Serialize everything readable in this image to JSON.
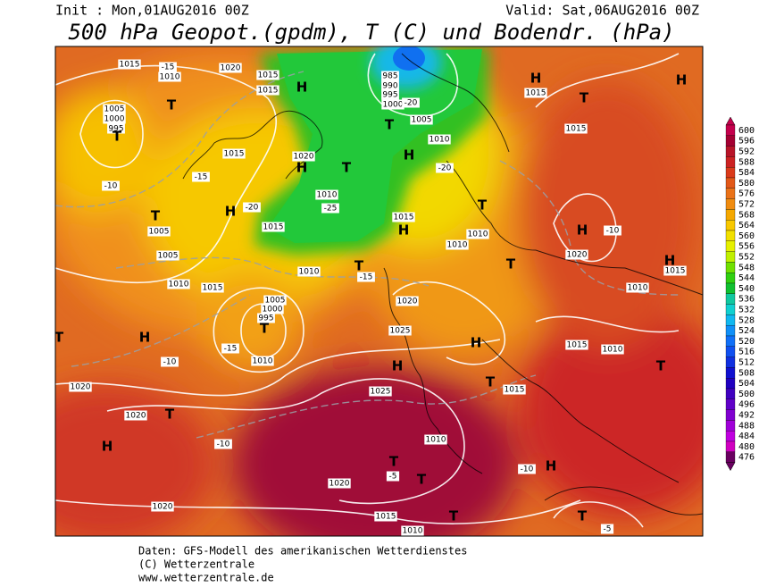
{
  "header": {
    "init": "Init : Mon,01AUG2016 00Z",
    "valid": "Valid: Sat,06AUG2016 00Z",
    "title": "500 hPa Geopot.(gpdm), T (C) und Bodendr. (hPa)"
  },
  "footer": {
    "line1": "Daten: GFS-Modell des amerikanischen Wetterdienstes",
    "line2": "(C) Wetterzentrale",
    "line3": "www.wetterzentrale.de"
  },
  "legend": {
    "levels": [
      600,
      596,
      592,
      588,
      584,
      580,
      576,
      572,
      568,
      564,
      560,
      556,
      552,
      548,
      544,
      540,
      536,
      532,
      528,
      524,
      520,
      516,
      512,
      508,
      504,
      500,
      496,
      492,
      488,
      484,
      480,
      476
    ],
    "colors": [
      "#c4004c",
      "#a40032",
      "#b81428",
      "#cc2222",
      "#da3a1a",
      "#e25818",
      "#ea7218",
      "#f08c10",
      "#f5a800",
      "#f8c800",
      "#f2e000",
      "#e6f000",
      "#c0f000",
      "#70e000",
      "#30d010",
      "#10c030",
      "#10c8a0",
      "#10d0d0",
      "#10b8f0",
      "#1090f8",
      "#1070f8",
      "#1050f0",
      "#1030e0",
      "#1010d0",
      "#2000c0",
      "#4000c0",
      "#6000c8",
      "#8000d0",
      "#a000d8",
      "#c000e0",
      "#d000c0",
      "#6a0060"
    ]
  },
  "map": {
    "pressure_labels": [
      "1015",
      "1010",
      "1005",
      "1000",
      "995",
      "1020",
      "1015",
      "1015",
      "985",
      "990",
      "995",
      "1000",
      "1005",
      "1010",
      "1015",
      "1020",
      "1010",
      "1015",
      "1005",
      "1005",
      "1010",
      "1015",
      "1010",
      "1015",
      "1010",
      "1005",
      "1000",
      "995",
      "1010",
      "1020",
      "1025",
      "1025",
      "1020",
      "1020",
      "1020",
      "1020",
      "1015",
      "1010",
      "1020",
      "1015",
      "1010",
      "1015",
      "1010",
      "1015",
      "1015",
      "1010",
      "1010",
      "1015"
    ],
    "temperature_labels": [
      "-15",
      "-10",
      "-20",
      "-25",
      "-20",
      "-10",
      "-10",
      "-5",
      "-10",
      "-15",
      "-15",
      "-20",
      "-15",
      "-10",
      "-5"
    ],
    "highs_lows": [
      "H",
      "T",
      "H",
      "T",
      "T",
      "H",
      "T",
      "H",
      "H",
      "T",
      "H",
      "T",
      "T",
      "H",
      "T",
      "H",
      "H",
      "T",
      "H",
      "T",
      "T",
      "T",
      "T",
      "H",
      "T",
      "H",
      "T",
      "H",
      "T",
      "T",
      "H",
      "T"
    ]
  }
}
